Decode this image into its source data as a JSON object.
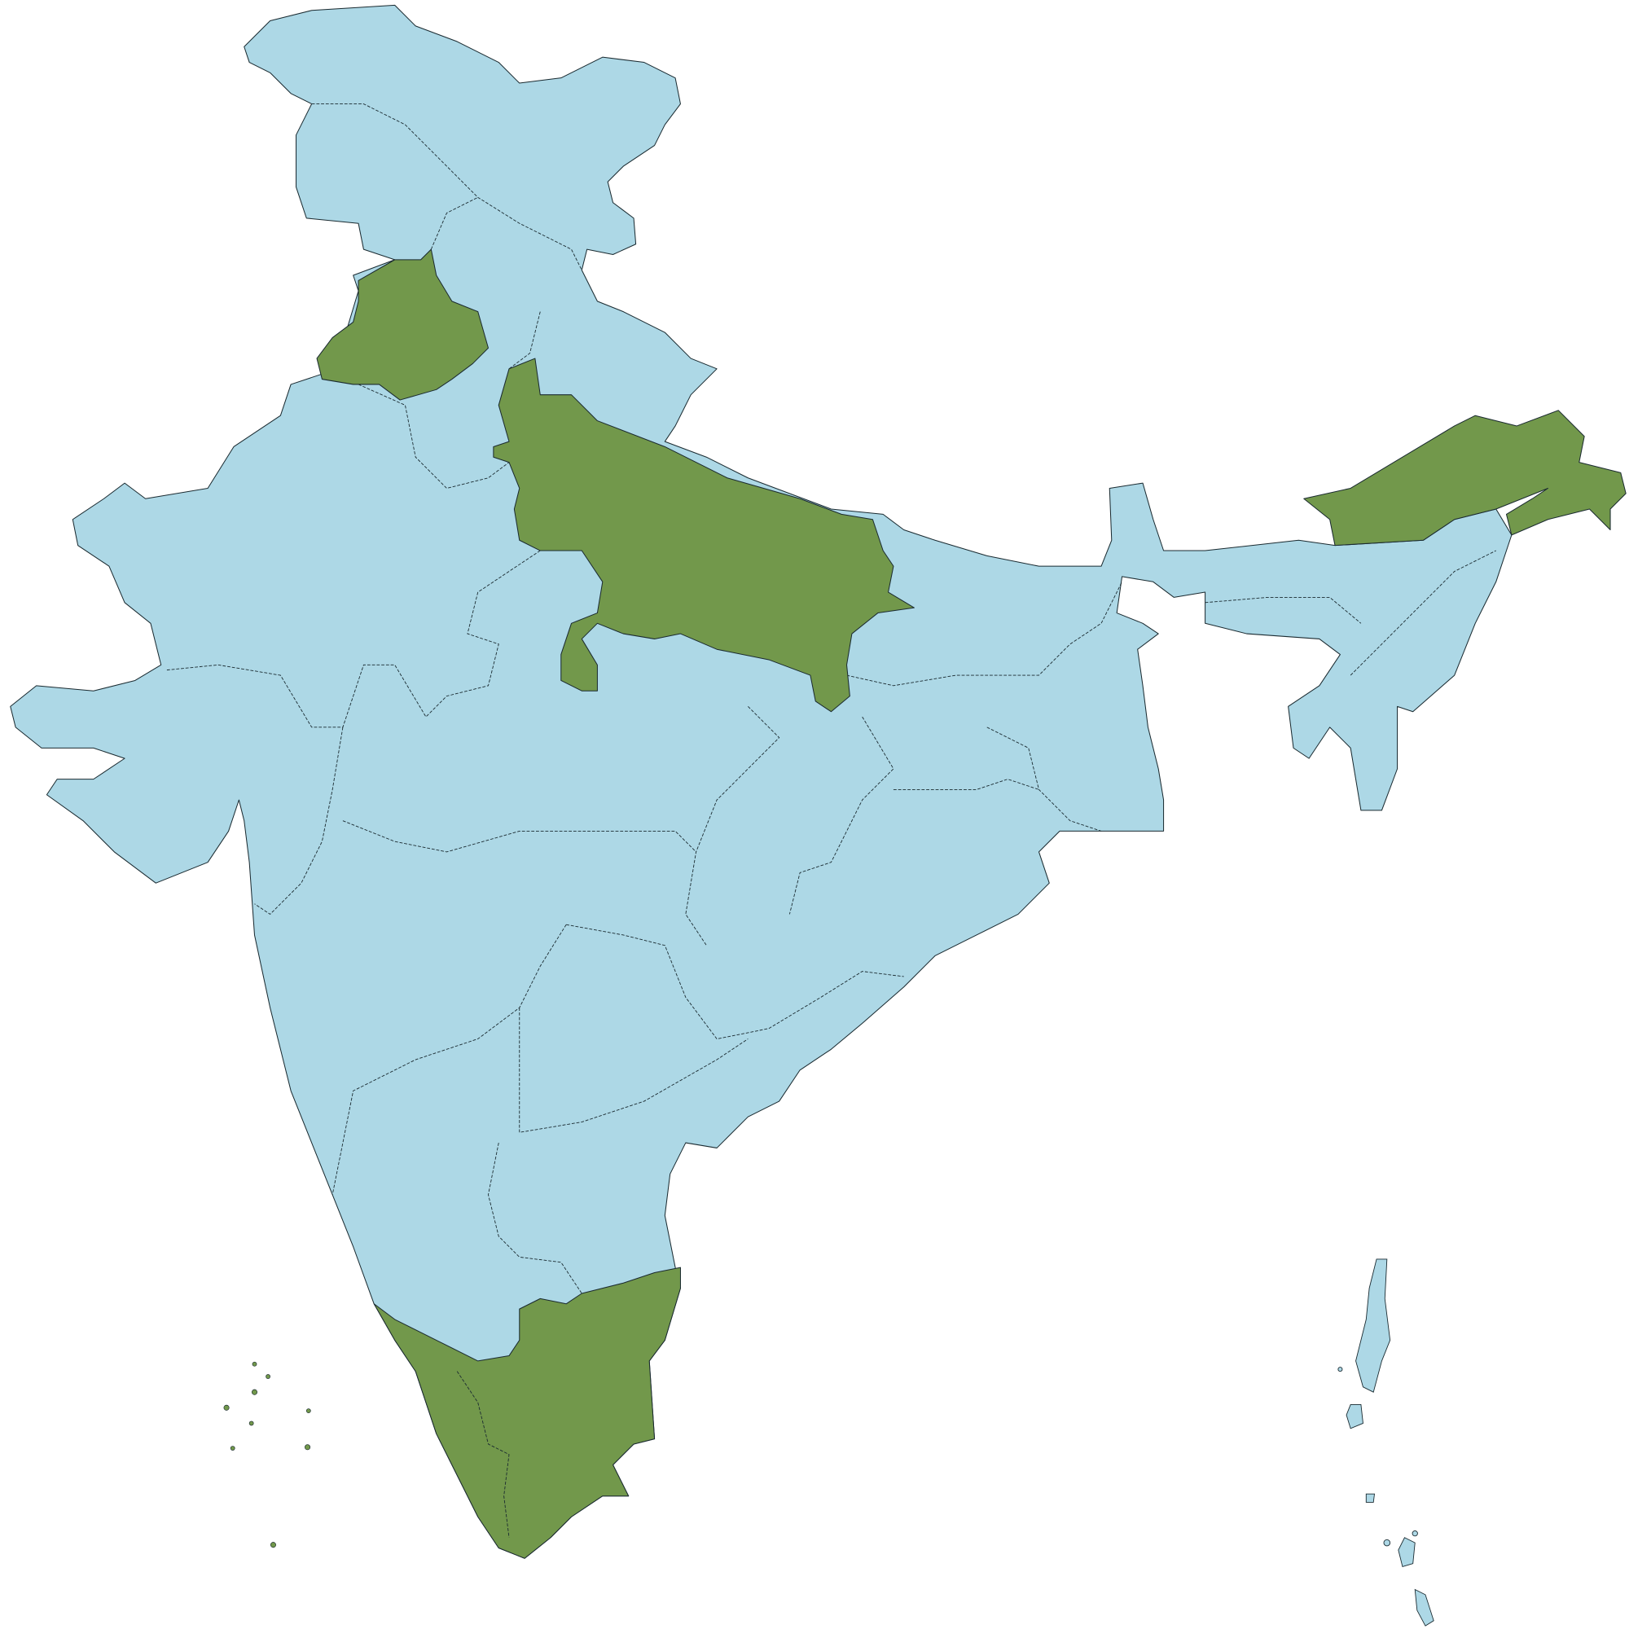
{
  "map": {
    "colors": {
      "base": "#add8e6",
      "highlight": "#72984b",
      "outline": "#1a2a30",
      "background": "#ffffff"
    }
  }
}
